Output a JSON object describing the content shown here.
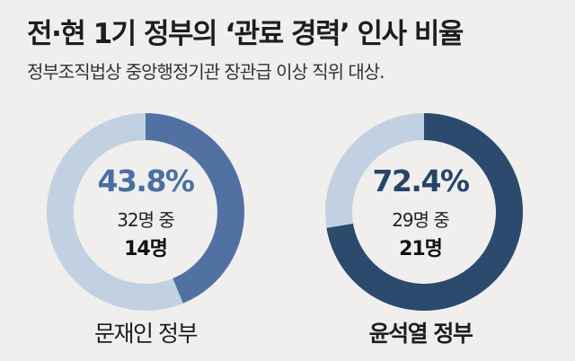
{
  "title": "전·현 1기 정부의 ‘관료 경력’ 인사 비율",
  "subtitle": "정부조직법상 중앙행정기관 장관급 이상 직위 대상.",
  "colors": {
    "moon_fill": "#5271a3",
    "moon_track": "#c2d1e2",
    "moon_pct_text": "#4a6fa3",
    "yoon_fill": "#2c4a6d",
    "yoon_track": "#c2d1e2",
    "yoon_pct_text": "#274468"
  },
  "chart_data": [
    {
      "type": "pie",
      "variant": "donut",
      "name": "문재인 정부",
      "percent_label": "43.8%",
      "value": 43.8,
      "total_label": "32명 중",
      "count_label": "14명",
      "total": 32,
      "count": 14
    },
    {
      "type": "pie",
      "variant": "donut",
      "name": "윤석열 정부",
      "percent_label": "72.4%",
      "value": 72.4,
      "total_label": "29명 중",
      "count_label": "21명",
      "total": 29,
      "count": 21
    }
  ]
}
